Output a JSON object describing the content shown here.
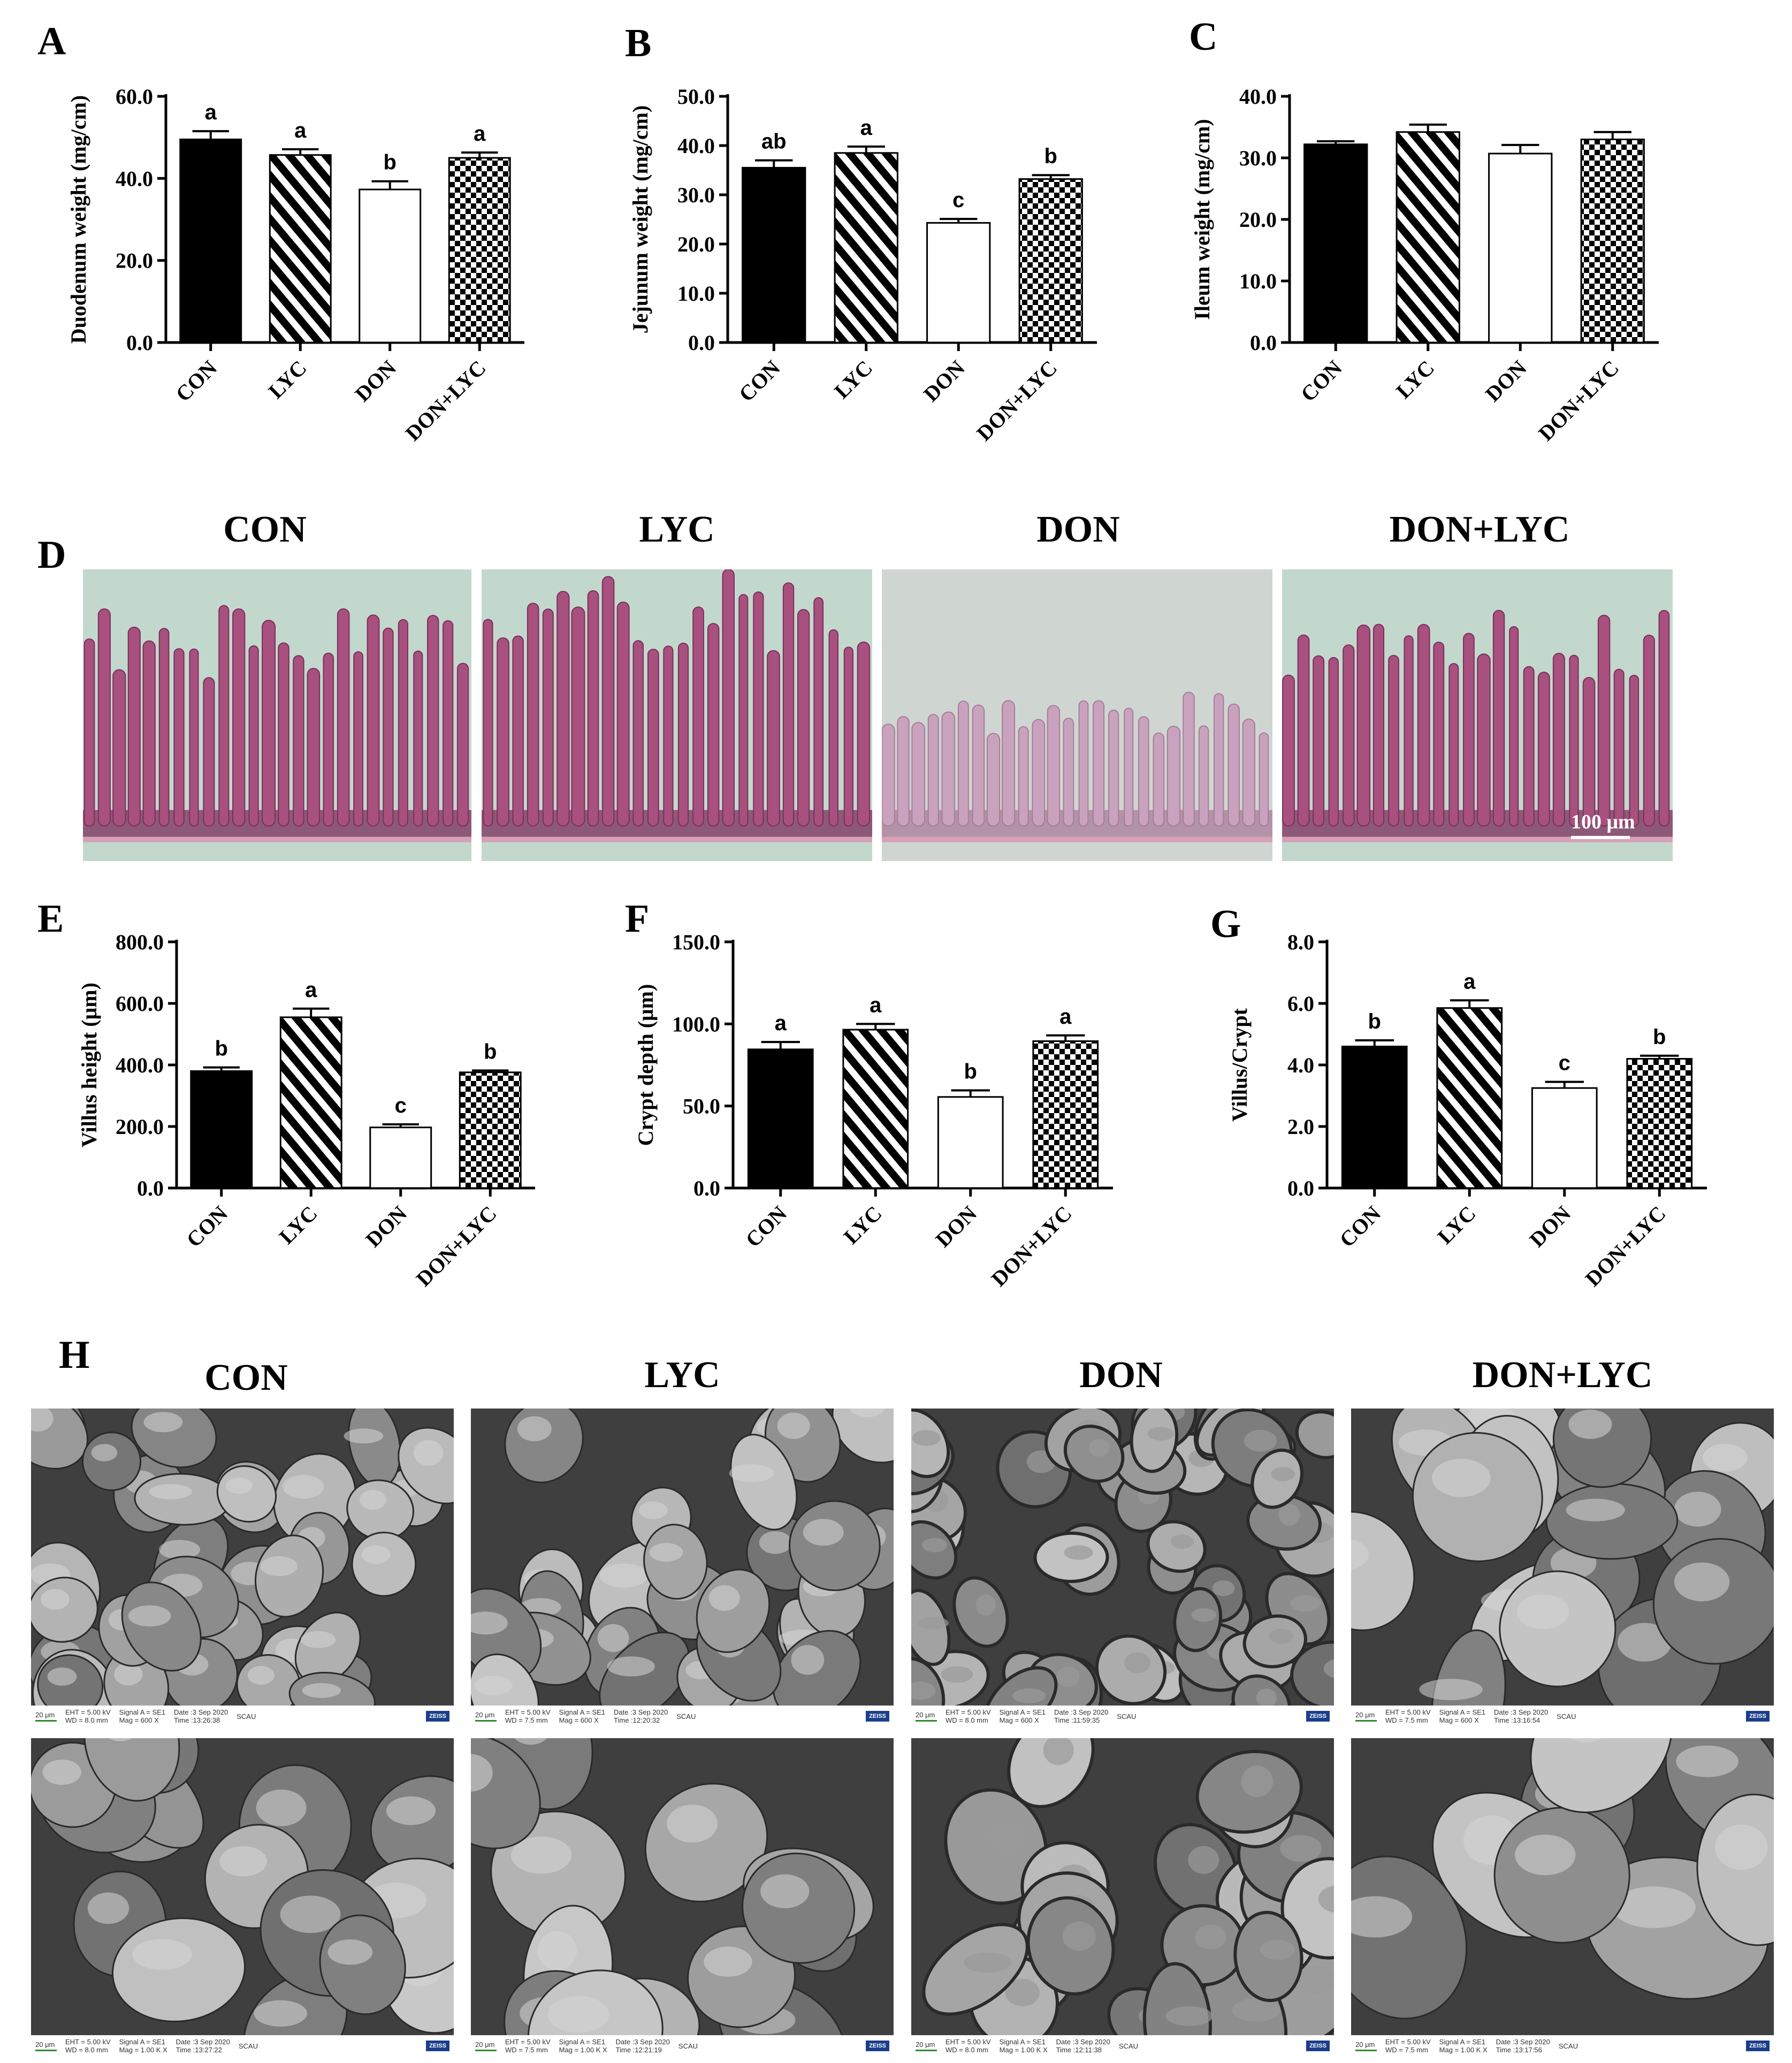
{
  "panels": {
    "A": "A",
    "B": "B",
    "C": "C",
    "D": "D",
    "E": "E",
    "F": "F",
    "G": "G",
    "H": "H"
  },
  "histology": {
    "titles": [
      "CON",
      "LYC",
      "DON",
      "DON+LYC"
    ],
    "scale_label": "100 μm"
  },
  "sem": {
    "titles": [
      "CON",
      "LYC",
      "DON",
      "DON+LYC"
    ],
    "scale_label": "20 μm",
    "info": [
      {
        "eht": "EHT = 5.00 kV",
        "wd": "WD = 8.0 mm",
        "signal": "Signal A = SE1",
        "mag": "Mag = 600 X",
        "date": "Date :3 Sep 2020",
        "time": "Time :13:26:38",
        "lab": "SCAU",
        "logo": "ZEISS"
      },
      {
        "eht": "EHT = 5.00 kV",
        "wd": "WD = 7.5 mm",
        "signal": "Signal A = SE1",
        "mag": "Mag = 600 X",
        "date": "Date :3 Sep 2020",
        "time": "Time :12:20:32",
        "lab": "SCAU",
        "logo": "ZEISS"
      },
      {
        "eht": "EHT = 5.00 kV",
        "wd": "WD = 8.0 mm",
        "signal": "Signal A = SE1",
        "mag": "Mag = 600 X",
        "date": "Date :3 Sep 2020",
        "time": "Time :11:59:35",
        "lab": "SCAU",
        "logo": "ZEISS"
      },
      {
        "eht": "EHT = 5.00 kV",
        "wd": "WD = 7.5 mm",
        "signal": "Signal A = SE1",
        "mag": "Mag = 600 X",
        "date": "Date :3 Sep 2020",
        "time": "Time :13:16:54",
        "lab": "SCAU",
        "logo": "ZEISS"
      },
      {
        "eht": "EHT = 5.00 kV",
        "wd": "WD = 8.0 mm",
        "signal": "Signal A = SE1",
        "mag": "Mag = 1.00 K X",
        "date": "Date :3 Sep 2020",
        "time": "Time :13:27:22",
        "lab": "SCAU",
        "logo": "ZEISS"
      },
      {
        "eht": "EHT = 5.00 kV",
        "wd": "WD = 7.5 mm",
        "signal": "Signal A = SE1",
        "mag": "Mag = 1.00 K X",
        "date": "Date :3 Sep 2020",
        "time": "Time :12:21:19",
        "lab": "SCAU",
        "logo": "ZEISS"
      },
      {
        "eht": "EHT = 5.00 kV",
        "wd": "WD = 8.0 mm",
        "signal": "Signal A = SE1",
        "mag": "Mag = 1.00 K X",
        "date": "Date :3 Sep 2020",
        "time": "Time :12:11:38",
        "lab": "SCAU",
        "logo": "ZEISS"
      },
      {
        "eht": "EHT = 5.00 kV",
        "wd": "WD = 7.5 mm",
        "signal": "Signal A = SE1",
        "mag": "Mag = 1.00 K X",
        "date": "Date :3 Sep 2020",
        "time": "Time :13:17:56",
        "lab": "SCAU",
        "logo": "ZEISS"
      }
    ]
  },
  "colors": {
    "bar_fill": "#000000",
    "empty_fill": "#ffffff",
    "histo_bg": "#c3d8cd",
    "tissue": "#a8507e",
    "sem_gray": "#5d5d5d"
  },
  "chart_data": [
    {
      "panel": "A",
      "type": "bar",
      "categories": [
        "CON",
        "LYC",
        "DON",
        "DON+LYC"
      ],
      "values": [
        49.5,
        45.7,
        37.3,
        45.0
      ],
      "errors": [
        2.0,
        1.4,
        2.0,
        1.3
      ],
      "letters": [
        "a",
        "a",
        "b",
        "a"
      ],
      "fills": [
        "solid",
        "stripe",
        "empty",
        "check"
      ],
      "ylabel": "Duodenum weight (mg/cm)",
      "ylim": [
        0,
        60
      ],
      "yticks": [
        "0.0",
        "20.0",
        "40.0",
        "60.0"
      ],
      "ytick_values": [
        0,
        20,
        40,
        60
      ]
    },
    {
      "panel": "B",
      "type": "bar",
      "categories": [
        "CON",
        "LYC",
        "DON",
        "DON+LYC"
      ],
      "values": [
        35.5,
        38.5,
        24.3,
        33.2
      ],
      "errors": [
        1.5,
        1.3,
        0.8,
        0.8
      ],
      "letters": [
        "ab",
        "a",
        "c",
        "b"
      ],
      "fills": [
        "solid",
        "stripe",
        "empty",
        "check"
      ],
      "ylabel": "Jejunum weight (mg/cm)",
      "ylim": [
        0,
        50
      ],
      "yticks": [
        "0.0",
        "10.0",
        "20.0",
        "30.0",
        "40.0",
        "50.0"
      ],
      "ytick_values": [
        0,
        10,
        20,
        30,
        40,
        50
      ]
    },
    {
      "panel": "C",
      "type": "bar",
      "categories": [
        "CON",
        "LYC",
        "DON",
        "DON+LYC"
      ],
      "values": [
        32.2,
        34.2,
        30.7,
        33.0
      ],
      "errors": [
        0.5,
        1.2,
        1.4,
        1.2
      ],
      "letters": [
        "",
        "",
        "",
        ""
      ],
      "fills": [
        "solid",
        "stripe",
        "empty",
        "check"
      ],
      "ylabel": "Ileum weight (mg/cm)",
      "ylim": [
        0,
        40
      ],
      "yticks": [
        "0.0",
        "10.0",
        "20.0",
        "30.0",
        "40.0"
      ],
      "ytick_values": [
        0,
        10,
        20,
        30,
        40
      ]
    },
    {
      "panel": "E",
      "type": "bar",
      "categories": [
        "CON",
        "LYC",
        "DON",
        "DON+LYC"
      ],
      "values": [
        380,
        555,
        197,
        376
      ],
      "errors": [
        12,
        28,
        10,
        6
      ],
      "letters": [
        "b",
        "a",
        "c",
        "b"
      ],
      "fills": [
        "solid",
        "stripe",
        "empty",
        "check"
      ],
      "ylabel": "Villus height (μm)",
      "ylim": [
        0,
        800
      ],
      "yticks": [
        "0.0",
        "200.0",
        "400.0",
        "600.0",
        "800.0"
      ],
      "ytick_values": [
        0,
        200,
        400,
        600,
        800
      ]
    },
    {
      "panel": "F",
      "type": "bar",
      "categories": [
        "CON",
        "LYC",
        "DON",
        "DON+LYC"
      ],
      "values": [
        84.5,
        96.5,
        55.5,
        89.5
      ],
      "errors": [
        4.5,
        3.5,
        4.0,
        3.5
      ],
      "letters": [
        "a",
        "a",
        "b",
        "a"
      ],
      "fills": [
        "solid",
        "stripe",
        "empty",
        "check"
      ],
      "ylabel": "Crypt depth (μm)",
      "ylim": [
        0,
        150
      ],
      "yticks": [
        "0.0",
        "50.0",
        "100.0",
        "150.0"
      ],
      "ytick_values": [
        0,
        50,
        100,
        150
      ]
    },
    {
      "panel": "G",
      "type": "bar",
      "categories": [
        "CON",
        "LYC",
        "DON",
        "DON+LYC"
      ],
      "values": [
        4.6,
        5.85,
        3.25,
        4.2
      ],
      "errors": [
        0.2,
        0.25,
        0.2,
        0.1
      ],
      "letters": [
        "b",
        "a",
        "c",
        "b"
      ],
      "fills": [
        "solid",
        "stripe",
        "empty",
        "check"
      ],
      "ylabel": "Villus/Crypt",
      "ylim": [
        0,
        8
      ],
      "yticks": [
        "0.0",
        "2.0",
        "4.0",
        "6.0",
        "8.0"
      ],
      "ytick_values": [
        0,
        2,
        4,
        6,
        8
      ]
    }
  ]
}
